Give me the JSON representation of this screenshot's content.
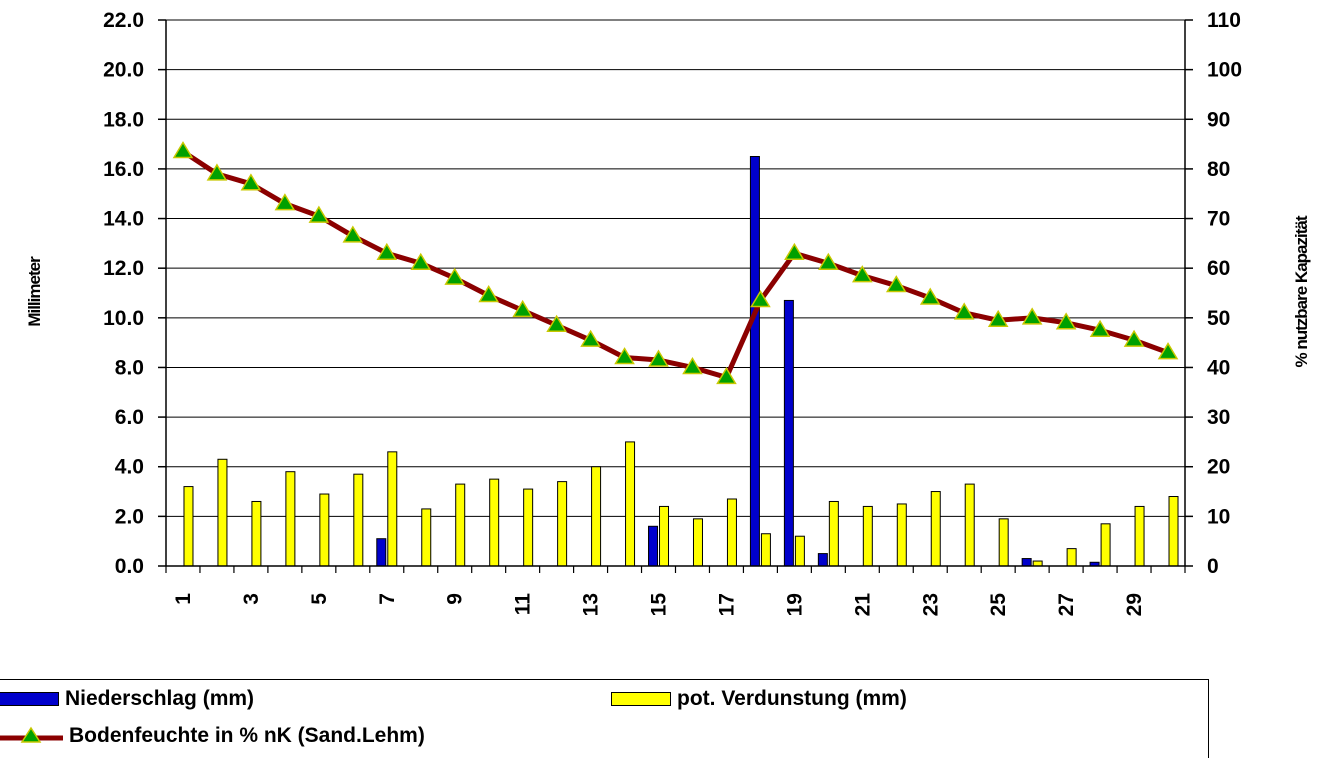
{
  "chart_data": {
    "type": "bar+line",
    "ylabel_left": "Millimeter",
    "ylabel_right": "% nutzbare Kapazität",
    "ylim_left": [
      0,
      22
    ],
    "ylim_right": [
      0,
      110
    ],
    "left_ticks": [
      "22.0",
      "20.0",
      "18.0",
      "16.0",
      "14.0",
      "12.0",
      "10.0",
      "8.0",
      "6.0",
      "4.0",
      "2.0",
      "0.0"
    ],
    "right_ticks": [
      "110",
      "100",
      "90",
      "80",
      "70",
      "60",
      "50",
      "40",
      "30",
      "20",
      "10",
      "0"
    ],
    "x": [
      1,
      2,
      3,
      4,
      5,
      6,
      7,
      8,
      9,
      10,
      11,
      12,
      13,
      14,
      15,
      16,
      17,
      18,
      19,
      20,
      21,
      22,
      23,
      24,
      25,
      26,
      27,
      28,
      29,
      30
    ],
    "x_tick_labels": [
      "1",
      "3",
      "5",
      "7",
      "9",
      "11",
      "13",
      "15",
      "17",
      "19",
      "21",
      "23",
      "25",
      "27",
      "29"
    ],
    "grid": true,
    "series": [
      {
        "name": "Niederschlag (mm)",
        "type": "bar",
        "axis": "left",
        "color": "#0000cc",
        "values": [
          0,
          0,
          0,
          0,
          0,
          0,
          1.1,
          0,
          0,
          0,
          0,
          0,
          0,
          0,
          1.6,
          0,
          0,
          16.5,
          10.7,
          0.5,
          0,
          0,
          0,
          0,
          0,
          0.3,
          0,
          0.15,
          0,
          0
        ]
      },
      {
        "name": "pot. Verdunstung (mm)",
        "type": "bar",
        "axis": "left",
        "color": "#ffff00",
        "values": [
          3.2,
          4.3,
          2.6,
          3.8,
          2.9,
          3.7,
          4.6,
          2.3,
          3.3,
          3.5,
          3.1,
          3.4,
          4.0,
          5.0,
          2.4,
          1.9,
          2.7,
          1.3,
          1.2,
          2.6,
          2.4,
          2.5,
          3.0,
          3.3,
          1.9,
          0.2,
          0.7,
          1.7,
          2.4,
          2.8
        ]
      },
      {
        "name": "Bodenfeuchte in % nK (Sand.Lehm)",
        "type": "line",
        "axis": "right",
        "color": "#8b0000",
        "marker_color": "#00a000",
        "values": [
          83.5,
          79,
          77,
          73,
          70.5,
          66.5,
          63,
          61,
          58,
          54.5,
          51.5,
          48.5,
          45.5,
          42,
          41.5,
          40,
          38,
          53.5,
          63,
          61,
          58.5,
          56.5,
          54,
          51,
          49.5,
          50,
          49,
          47.5,
          45.5,
          43
        ]
      }
    ]
  },
  "legend": {
    "items": [
      {
        "label": "Niederschlag (mm)",
        "color": "#0000cc"
      },
      {
        "label": "pot. Verdunstung (mm)",
        "color": "#ffff00"
      },
      {
        "label": "Bodenfeuchte in % nK (Sand.Lehm)",
        "color": "#8b0000",
        "marker": "#00a000"
      }
    ]
  }
}
